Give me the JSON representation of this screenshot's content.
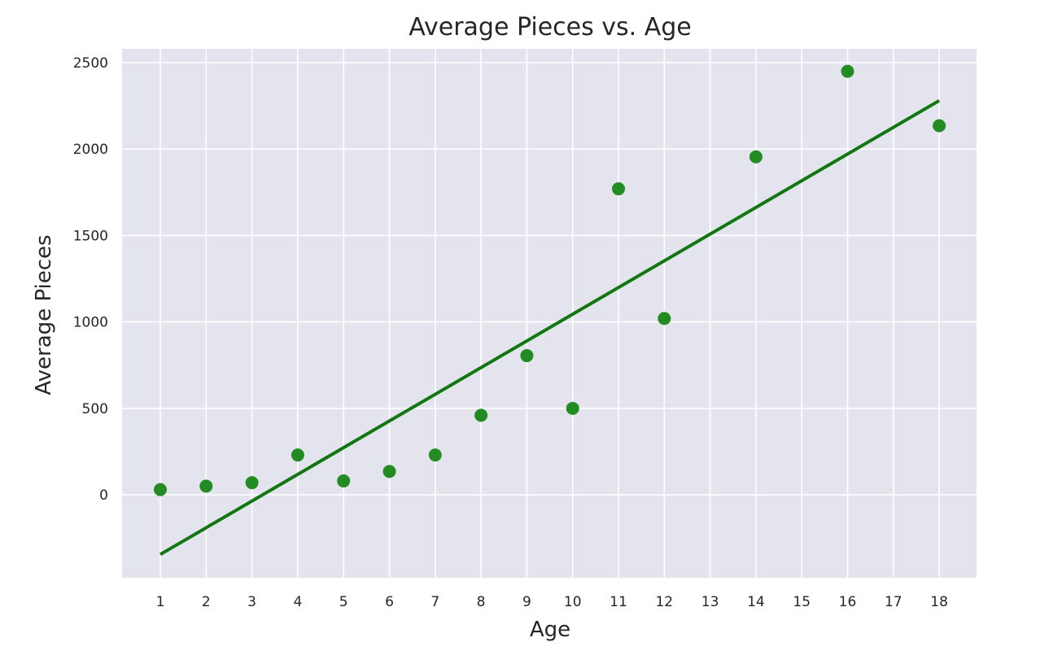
{
  "chart_data": {
    "type": "scatter",
    "title": "Average Pieces vs. Age",
    "xlabel": "Age",
    "ylabel": "Average Pieces",
    "x_categories": [
      "1",
      "2",
      "3",
      "4",
      "5",
      "6",
      "7",
      "8",
      "9",
      "10",
      "11",
      "12",
      "13",
      "14",
      "15",
      "16",
      "17",
      "18"
    ],
    "series": [
      {
        "points": [
          {
            "x": "1",
            "y": 30
          },
          {
            "x": "2",
            "y": 50
          },
          {
            "x": "3",
            "y": 70
          },
          {
            "x": "4",
            "y": 230
          },
          {
            "x": "5",
            "y": 80
          },
          {
            "x": "6",
            "y": 135
          },
          {
            "x": "7",
            "y": 230
          },
          {
            "x": "8",
            "y": 460
          },
          {
            "x": "9",
            "y": 805
          },
          {
            "x": "10",
            "y": 500
          },
          {
            "x": "11",
            "y": 1770
          },
          {
            "x": "12",
            "y": 1020
          },
          {
            "x": "14",
            "y": 1955
          },
          {
            "x": "16",
            "y": 2450
          },
          {
            "x": "18",
            "y": 2135
          }
        ]
      }
    ],
    "trend_line": {
      "x": [
        "1",
        "18"
      ],
      "y": [
        -345,
        2280
      ]
    },
    "yticks": [
      0,
      500,
      1000,
      1500,
      2000,
      2500
    ],
    "ylim": [
      -480,
      2580
    ],
    "grid": true,
    "colors": {
      "points": "#228b22",
      "trend_line": "#117711",
      "background": "#e4e4ee",
      "grid": "#ffffff"
    }
  }
}
